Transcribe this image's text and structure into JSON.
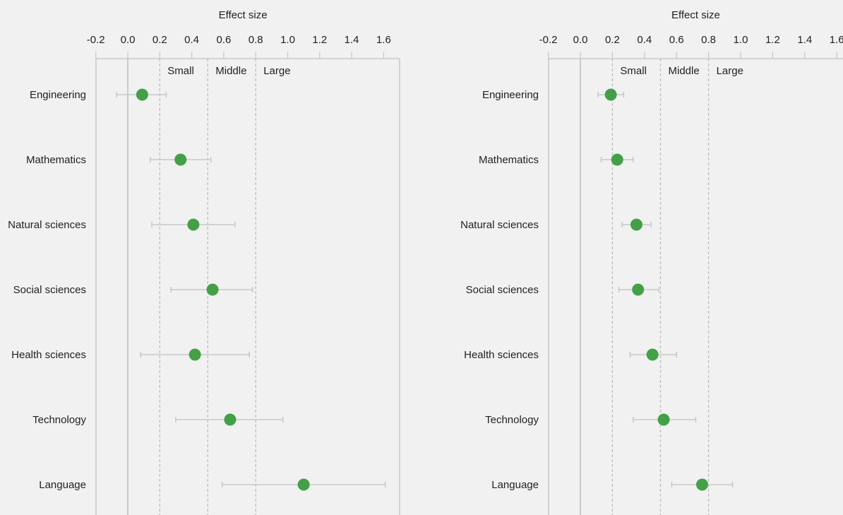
{
  "chart_data": [
    {
      "type": "scatter",
      "title": "",
      "xlabel": "Effect size",
      "ylabel": "",
      "xlim": [
        -0.2,
        1.7
      ],
      "x_ticks": [
        -0.2,
        0.0,
        0.2,
        0.4,
        0.6,
        0.8,
        1.0,
        1.2,
        1.4,
        1.6
      ],
      "x_tick_labels": [
        "-0.2",
        "0.0",
        "0.2",
        "0.4",
        "0.6",
        "0.8",
        "1.0",
        "1.2",
        "1.4",
        "1.6"
      ],
      "categories": [
        "Engineering",
        "Mathematics",
        "Natural sciences",
        "Social sciences",
        "Health sciences",
        "Technology",
        "Language"
      ],
      "values": [
        0.09,
        0.33,
        0.41,
        0.53,
        0.42,
        0.64,
        1.1
      ],
      "ci_low": [
        -0.07,
        0.14,
        0.15,
        0.27,
        0.08,
        0.3,
        0.59
      ],
      "ci_high": [
        0.24,
        0.52,
        0.67,
        0.78,
        0.76,
        0.97,
        1.61
      ],
      "reference_lines": [
        {
          "x": 0.2,
          "label": "Small"
        },
        {
          "x": 0.5,
          "label": "Middle"
        },
        {
          "x": 0.8,
          "label": "Large"
        }
      ],
      "zero_line": 0,
      "grid": false,
      "legend": "none",
      "colors": {
        "point": "#43a047",
        "errorbar": "#c8c8c8",
        "axis": "#c8c8c8",
        "refline": "#bdbdbd",
        "zero": "#bdbdbd"
      }
    },
    {
      "type": "scatter",
      "title": "",
      "xlabel": "Effect size",
      "ylabel": "",
      "xlim": [
        -0.2,
        1.7
      ],
      "x_ticks": [
        -0.2,
        0.0,
        0.2,
        0.4,
        0.6,
        0.8,
        1.0,
        1.2,
        1.4,
        1.6
      ],
      "x_tick_labels": [
        "-0.2",
        "0.0",
        "0.2",
        "0.4",
        "0.6",
        "0.8",
        "1.0",
        "1.2",
        "1.4",
        "1.6"
      ],
      "categories": [
        "Engineering",
        "Mathematics",
        "Natural sciences",
        "Social sciences",
        "Health sciences",
        "Technology",
        "Language"
      ],
      "values": [
        0.19,
        0.23,
        0.35,
        0.36,
        0.45,
        0.52,
        0.76
      ],
      "ci_low": [
        0.11,
        0.13,
        0.26,
        0.24,
        0.31,
        0.33,
        0.57
      ],
      "ci_high": [
        0.27,
        0.33,
        0.44,
        0.49,
        0.6,
        0.72,
        0.95
      ],
      "reference_lines": [
        {
          "x": 0.2,
          "label": "Small"
        },
        {
          "x": 0.5,
          "label": "Middle"
        },
        {
          "x": 0.8,
          "label": "Large"
        }
      ],
      "zero_line": 0,
      "grid": false,
      "legend": "none",
      "colors": {
        "point": "#43a047",
        "errorbar": "#c8c8c8",
        "axis": "#c8c8c8",
        "refline": "#bdbdbd",
        "zero": "#bdbdbd"
      }
    }
  ]
}
